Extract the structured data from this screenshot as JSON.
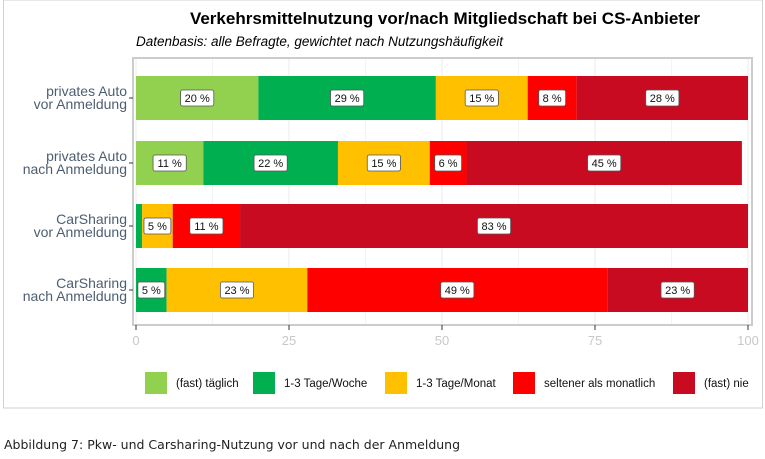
{
  "chart_data": {
    "type": "bar",
    "orientation": "horizontal",
    "stacked": true,
    "title": "Verkehrsmittelnutzung vor/nach Mitgliedschaft bei CS-Anbieter",
    "subtitle": "Datenbasis: alle Befragte, gewichtet nach Nutzungshäufigkeit",
    "categories": [
      [
        "privates Auto",
        "vor Anmeldung"
      ],
      [
        "privates Auto",
        "nach Anmeldung"
      ],
      [
        "CarSharing",
        "vor Anmeldung"
      ],
      [
        "CarSharing",
        "nach Anmeldung"
      ]
    ],
    "series": [
      {
        "name": "(fast) täglich",
        "color": "#92d050",
        "values": [
          20,
          11,
          0,
          0
        ]
      },
      {
        "name": "1-3 Tage/Woche",
        "color": "#00b050",
        "values": [
          29,
          22,
          1,
          5
        ]
      },
      {
        "name": "1-3 Tage/Monat",
        "color": "#ffc000",
        "values": [
          15,
          15,
          5,
          23
        ]
      },
      {
        "name": "seltener als monatlich",
        "color": "#ff0000",
        "values": [
          8,
          6,
          11,
          49
        ]
      },
      {
        "name": "(fast) nie",
        "color": "#c90b21",
        "values": [
          28,
          45,
          83,
          23
        ]
      }
    ],
    "label_suffix": " %",
    "xlim": [
      0,
      100
    ],
    "xticks": [
      "0",
      "25",
      "50",
      "75",
      "100"
    ],
    "xlabel": "",
    "ylabel": "",
    "grid": true,
    "legend_position": "bottom"
  },
  "caption": "Abbildung 7: Pkw- und Carsharing-Nutzung vor und nach der Anmeldung"
}
